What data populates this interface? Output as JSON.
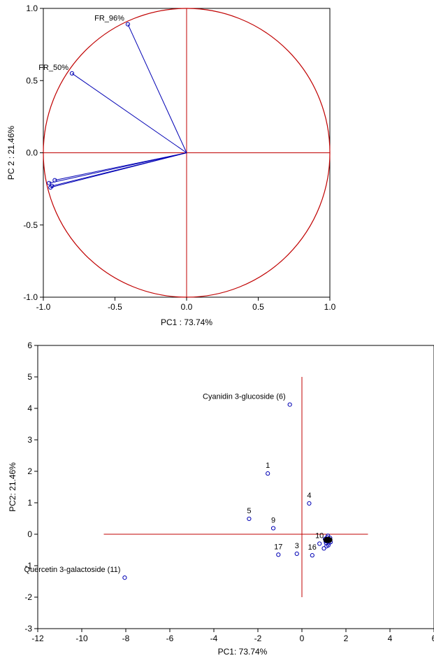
{
  "colors": {
    "point": "#0000b4",
    "reference": "#c00000",
    "frame": "#000000"
  },
  "chart_data": [
    {
      "type": "scatter",
      "subtype": "loading-plot",
      "xlabel": "PC1 : 73.74%",
      "ylabel": "PC 2 : 21.46%",
      "xlim": [
        -1.0,
        1.0
      ],
      "ylim": [
        -1.0,
        1.0
      ],
      "xticks": [
        "-1.0",
        "-0.5",
        "0.0",
        "0.5",
        "1.0"
      ],
      "yticks": [
        "-1.0",
        "-0.5",
        "0.0",
        "0.5",
        "1.0"
      ],
      "grid": false,
      "unit_circle": true,
      "vectors_from_origin": true,
      "points": [
        {
          "label": "FR_96%",
          "x": -0.41,
          "y": 0.89
        },
        {
          "label": "FR_50%",
          "x": -0.8,
          "y": 0.55
        },
        {
          "label": "",
          "x": -0.92,
          "y": -0.19
        },
        {
          "label": "",
          "x": -0.94,
          "y": -0.23
        },
        {
          "label": "",
          "x": -0.96,
          "y": -0.21
        },
        {
          "label": "",
          "x": -0.95,
          "y": -0.24
        }
      ]
    },
    {
      "type": "scatter",
      "subtype": "score-plot",
      "xlabel": "PC1: 73.74%",
      "ylabel": "PC2: 21.46%",
      "xlim": [
        -12,
        6
      ],
      "ylim": [
        -3,
        6
      ],
      "xticks": [
        "-12",
        "-10",
        "-8",
        "-6",
        "-4",
        "-2",
        "0",
        "2",
        "4",
        "6"
      ],
      "yticks": [
        "-3",
        "-2",
        "-1",
        "0",
        "1",
        "2",
        "3",
        "4",
        "5",
        "6"
      ],
      "grid": false,
      "reference_lines": {
        "h": {
          "y": 0,
          "x_from": -9,
          "x_to": 3
        },
        "v": {
          "x": 0,
          "y_from": -2,
          "y_to": 5
        }
      },
      "points": [
        {
          "label": "Cyanidin 3-glucoside (6)",
          "x": -0.55,
          "y": 4.12
        },
        {
          "label": "1",
          "x": -1.55,
          "y": 1.93
        },
        {
          "label": "4",
          "x": 0.33,
          "y": 0.98
        },
        {
          "label": "5",
          "x": -2.4,
          "y": 0.49
        },
        {
          "label": "9",
          "x": -1.3,
          "y": 0.19
        },
        {
          "label": "17",
          "x": -1.07,
          "y": -0.65
        },
        {
          "label": "3",
          "x": -0.23,
          "y": -0.62
        },
        {
          "label": "16",
          "x": 0.47,
          "y": -0.67
        },
        {
          "label": "10",
          "x": 0.8,
          "y": -0.3
        },
        {
          "label": "Quercetin 3-galactoside (11)",
          "x": -8.05,
          "y": -1.38
        },
        {
          "label": "",
          "x": 1.0,
          "y": -0.45
        },
        {
          "label": "",
          "x": 1.1,
          "y": -0.28
        },
        {
          "label": "",
          "x": 1.2,
          "y": -0.35
        },
        {
          "label": "",
          "x": 1.05,
          "y": -0.15
        },
        {
          "label": "",
          "x": 1.15,
          "y": -0.1
        },
        {
          "label": "",
          "x": 1.25,
          "y": -0.2
        },
        {
          "label": "",
          "x": 1.08,
          "y": -0.22
        },
        {
          "label": "",
          "x": 1.18,
          "y": -0.05
        },
        {
          "label": "",
          "x": 1.28,
          "y": -0.12
        },
        {
          "label": "",
          "x": 1.12,
          "y": -0.38
        },
        {
          "label": "",
          "x": 1.22,
          "y": -0.28
        },
        {
          "label": "",
          "x": 1.3,
          "y": -0.25
        }
      ]
    }
  ]
}
